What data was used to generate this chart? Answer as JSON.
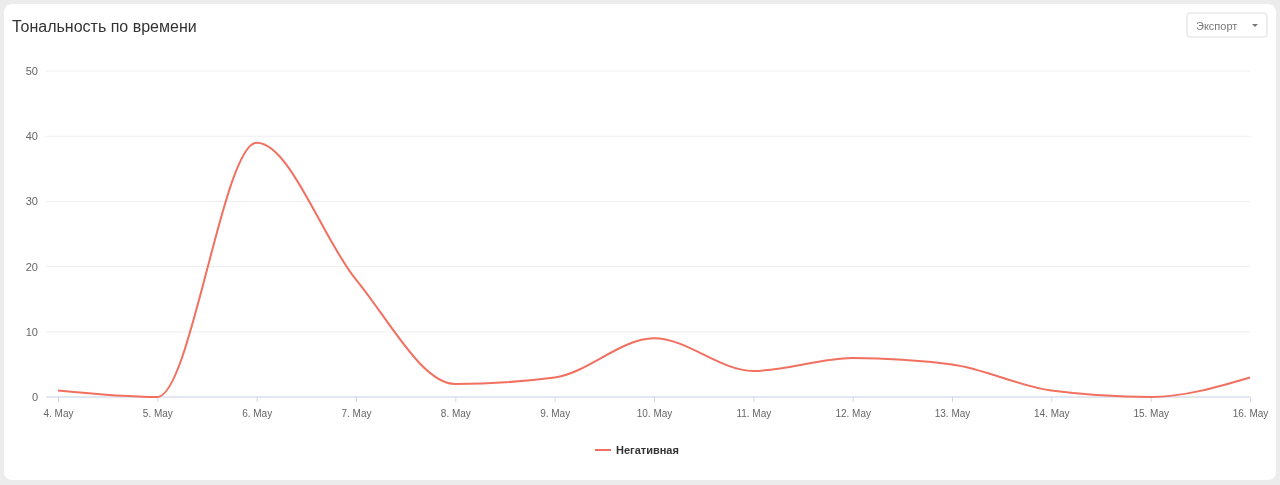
{
  "chart_data": {
    "type": "line",
    "title": "Тональность по времени",
    "annotations": [
      "Экспорт"
    ],
    "categories": [
      "4. May",
      "5. May",
      "6. May",
      "7. May",
      "8. May",
      "9. May",
      "10. May",
      "11. May",
      "12. May",
      "13. May",
      "14. May",
      "15. May",
      "16. May"
    ],
    "series": [
      {
        "name": "Негативная",
        "color": "#f1705f",
        "values": [
          1,
          0,
          39,
          18,
          2,
          3,
          9,
          4,
          6,
          5,
          1,
          0,
          3
        ]
      }
    ],
    "ylim": [
      0,
      50
    ],
    "yticks": [
      0,
      10,
      20,
      30,
      40,
      50
    ],
    "grid": "y",
    "legend": "bottom",
    "marker": "none",
    "line_style": "solid"
  }
}
